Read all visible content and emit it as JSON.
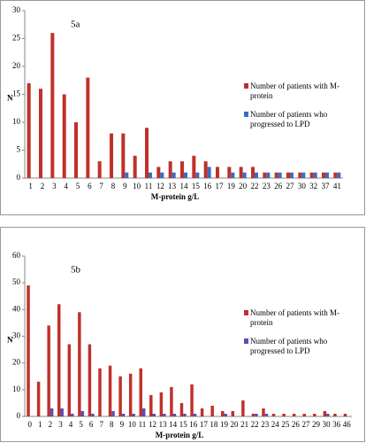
{
  "chart_data": [
    {
      "type": "bar",
      "title": "5a",
      "xlabel": "M-protein g/L",
      "ylabel": "N",
      "categories": [
        "1",
        "2",
        "3",
        "4",
        "5",
        "6",
        "7",
        "8",
        "9",
        "10",
        "11",
        "12",
        "13",
        "14",
        "15",
        "16",
        "17",
        "19",
        "20",
        "22",
        "23",
        "26",
        "27",
        "30",
        "32",
        "37",
        "41"
      ],
      "series": [
        {
          "name": "Number of patients with M-protein",
          "color": "#c0302a",
          "values": [
            17,
            16,
            26,
            15,
            10,
            18,
            3,
            8,
            8,
            4,
            9,
            2,
            3,
            3,
            4,
            3,
            2,
            2,
            2,
            2,
            1,
            1,
            1,
            1,
            1,
            1,
            1
          ]
        },
        {
          "name": "Number of patients who progressed to LPD",
          "color": "#3a6cc4",
          "values": [
            0,
            0,
            0,
            0,
            0,
            0,
            0,
            0,
            1,
            0,
            1,
            1,
            1,
            1,
            1,
            2,
            0,
            1,
            1,
            1,
            1,
            1,
            1,
            1,
            1,
            1,
            1
          ]
        }
      ],
      "ylim": [
        0,
        30
      ],
      "yticks": [
        0,
        5,
        10,
        15,
        20,
        25,
        30
      ]
    },
    {
      "type": "bar",
      "title": "5b",
      "xlabel": "M-protein g/L",
      "ylabel": "N",
      "categories": [
        "0",
        "1",
        "2",
        "3",
        "4",
        "5",
        "6",
        "7",
        "8",
        "9",
        "10",
        "11",
        "12",
        "13",
        "14",
        "15",
        "16",
        "17",
        "18",
        "19",
        "20",
        "21",
        "22",
        "23",
        "24",
        "25",
        "26",
        "27",
        "29",
        "30",
        "36",
        "46"
      ],
      "series": [
        {
          "name": "Number of patients with M-protein",
          "color": "#c0302a",
          "values": [
            49,
            13,
            34,
            42,
            27,
            39,
            27,
            18,
            19,
            15,
            16,
            18,
            8,
            9,
            11,
            5,
            12,
            3,
            4,
            2,
            2,
            6,
            1,
            3,
            1,
            1,
            1,
            1,
            1,
            2,
            1,
            1
          ]
        },
        {
          "name": "Number of patients who progressed to LPD",
          "color": "#5a4fb0",
          "values": [
            0,
            0,
            3,
            3,
            1,
            2,
            1,
            0,
            2,
            1,
            1,
            3,
            1,
            1,
            1,
            1,
            1,
            0,
            0,
            1,
            0,
            0,
            1,
            1,
            0,
            0,
            0,
            0,
            0,
            1,
            0,
            0
          ]
        }
      ],
      "ylim": [
        0,
        60
      ],
      "yticks": [
        0,
        10,
        20,
        30,
        40,
        50,
        60
      ]
    }
  ]
}
